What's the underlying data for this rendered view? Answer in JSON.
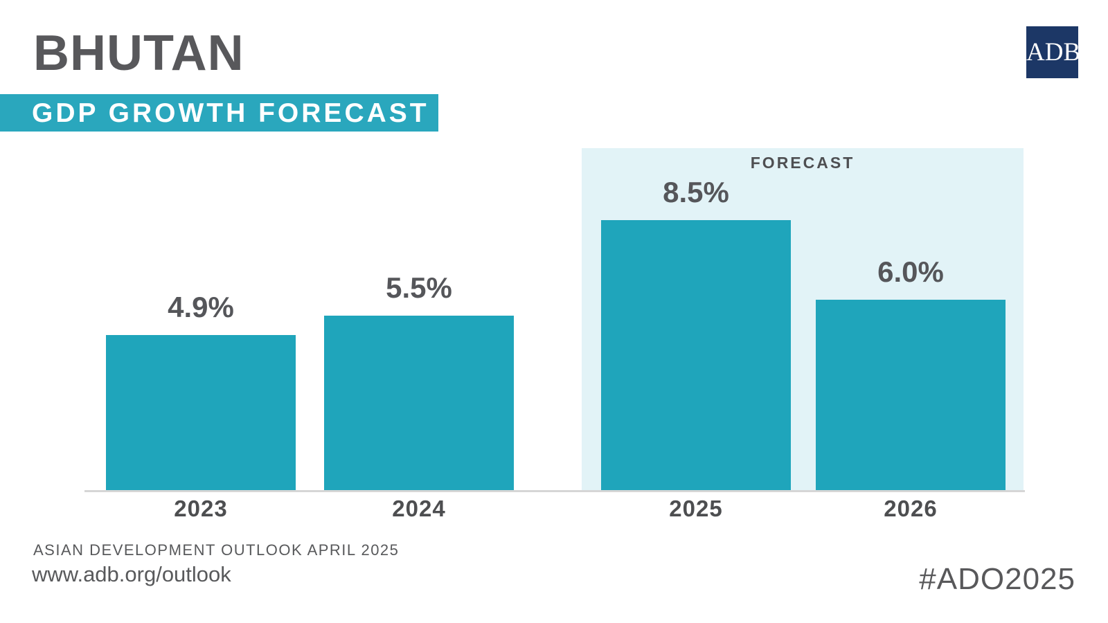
{
  "header": {
    "country": "BHUTAN",
    "subtitle": "GDP GROWTH FORECAST",
    "logo_text": "ADB"
  },
  "chart_data": {
    "type": "bar",
    "title": "BHUTAN GDP GROWTH FORECAST",
    "categories": [
      "2023",
      "2024",
      "2025",
      "2026"
    ],
    "values": [
      4.9,
      5.5,
      8.5,
      6.0
    ],
    "data_labels": [
      "4.9%",
      "5.5%",
      "8.5%",
      "6.0%"
    ],
    "unit": "%",
    "ylim": [
      0,
      10
    ],
    "grid": "off",
    "legend": "none",
    "forecast_label": "FORECAST",
    "forecast_categories": [
      "2025",
      "2026"
    ],
    "colors": {
      "bar": "#1FA5BB",
      "forecast_background": "#E2F3F7",
      "band_background": "#2AA7BD",
      "logo_background": "#1C3766",
      "title_text": "#58585B",
      "label_text": "#55565A",
      "axis_line": "#D6D6D6"
    }
  },
  "footer": {
    "source": "ASIAN DEVELOPMENT OUTLOOK APRIL 2025",
    "url": "www.adb.org/outlook",
    "hashtag": "#ADO2025"
  }
}
